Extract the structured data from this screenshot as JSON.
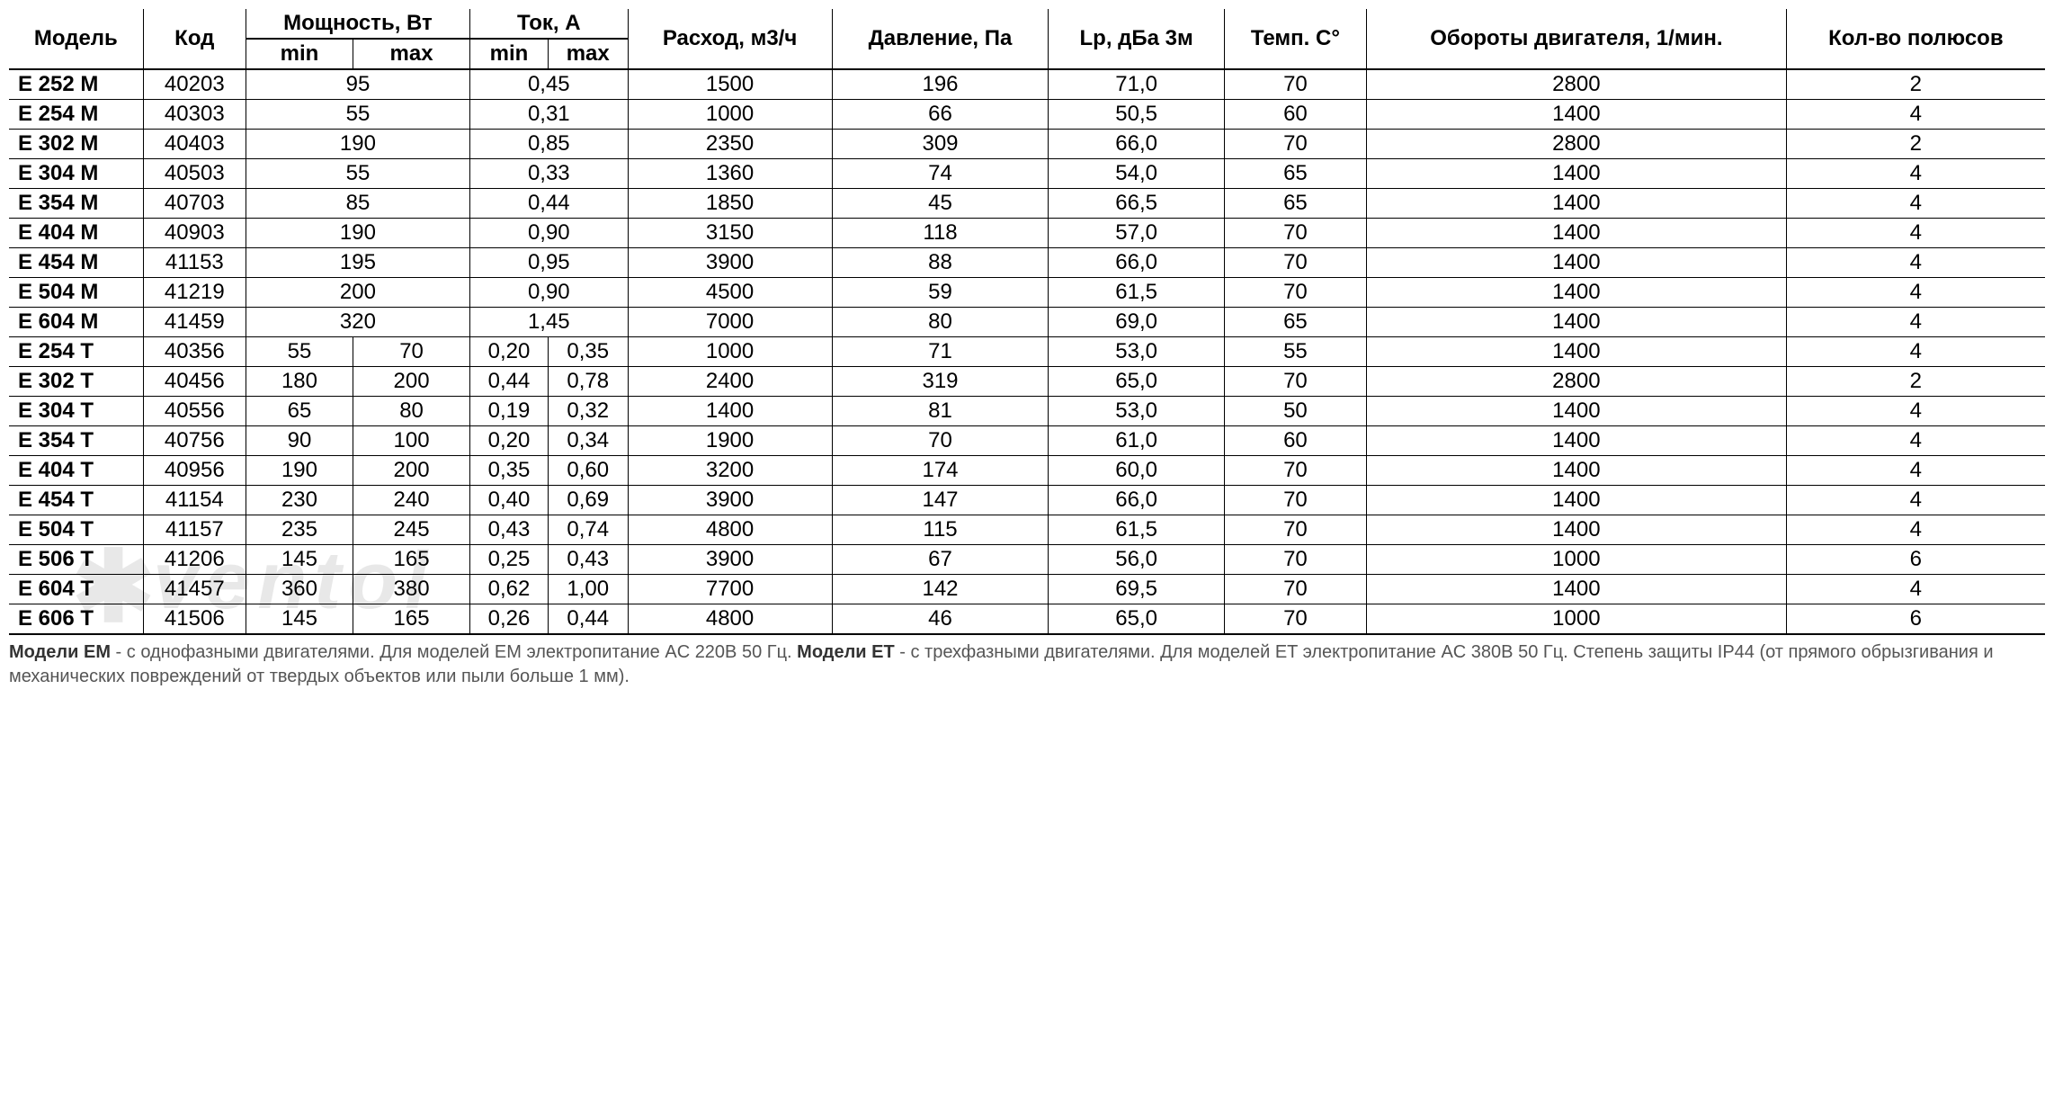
{
  "table": {
    "text_color": "#000000",
    "header_color": "#000000",
    "border_color": "#000000",
    "background_color": "#ffffff",
    "font_size_pt": 18,
    "headers": {
      "model": "Модель",
      "code": "Код",
      "power": "Мощность, Вт",
      "power_min": "min",
      "power_max": "max",
      "current": "Ток, А",
      "current_min": "min",
      "current_max": "max",
      "flow": "Расход, м3/ч",
      "pressure": "Давление, Па",
      "lp": "Lp, дБа 3м",
      "temp": "Темп. C°",
      "rpm": "Обороты двигателя, 1/мин.",
      "poles": "Кол-во полюсов"
    },
    "column_widths_pct": [
      8,
      7,
      6,
      6,
      6,
      6,
      9,
      9,
      8,
      8,
      10,
      9
    ],
    "rows": [
      {
        "model": "E 252 M",
        "code": "40203",
        "p_min": "95",
        "p_max": "",
        "c_min": "0,45",
        "c_max": "",
        "flow": "1500",
        "press": "196",
        "lp": "71,0",
        "temp": "70",
        "rpm": "2800",
        "poles": "2",
        "merged": true
      },
      {
        "model": "E 254 M",
        "code": "40303",
        "p_min": "55",
        "p_max": "",
        "c_min": "0,31",
        "c_max": "",
        "flow": "1000",
        "press": "66",
        "lp": "50,5",
        "temp": "60",
        "rpm": "1400",
        "poles": "4",
        "merged": true
      },
      {
        "model": "E 302 M",
        "code": "40403",
        "p_min": "190",
        "p_max": "",
        "c_min": "0,85",
        "c_max": "",
        "flow": "2350",
        "press": "309",
        "lp": "66,0",
        "temp": "70",
        "rpm": "2800",
        "poles": "2",
        "merged": true
      },
      {
        "model": "E 304 M",
        "code": "40503",
        "p_min": "55",
        "p_max": "",
        "c_min": "0,33",
        "c_max": "",
        "flow": "1360",
        "press": "74",
        "lp": "54,0",
        "temp": "65",
        "rpm": "1400",
        "poles": "4",
        "merged": true
      },
      {
        "model": "E 354 M",
        "code": "40703",
        "p_min": "85",
        "p_max": "",
        "c_min": "0,44",
        "c_max": "",
        "flow": "1850",
        "press": "45",
        "lp": "66,5",
        "temp": "65",
        "rpm": "1400",
        "poles": "4",
        "merged": true
      },
      {
        "model": "E 404 M",
        "code": "40903",
        "p_min": "190",
        "p_max": "",
        "c_min": "0,90",
        "c_max": "",
        "flow": "3150",
        "press": "118",
        "lp": "57,0",
        "temp": "70",
        "rpm": "1400",
        "poles": "4",
        "merged": true
      },
      {
        "model": "E 454 M",
        "code": "41153",
        "p_min": "195",
        "p_max": "",
        "c_min": "0,95",
        "c_max": "",
        "flow": "3900",
        "press": "88",
        "lp": "66,0",
        "temp": "70",
        "rpm": "1400",
        "poles": "4",
        "merged": true
      },
      {
        "model": "E 504 M",
        "code": "41219",
        "p_min": "200",
        "p_max": "",
        "c_min": "0,90",
        "c_max": "",
        "flow": "4500",
        "press": "59",
        "lp": "61,5",
        "temp": "70",
        "rpm": "1400",
        "poles": "4",
        "merged": true
      },
      {
        "model": "E 604 M",
        "code": "41459",
        "p_min": "320",
        "p_max": "",
        "c_min": "1,45",
        "c_max": "",
        "flow": "7000",
        "press": "80",
        "lp": "69,0",
        "temp": "65",
        "rpm": "1400",
        "poles": "4",
        "merged": true
      },
      {
        "model": "E 254 T",
        "code": "40356",
        "p_min": "55",
        "p_max": "70",
        "c_min": "0,20",
        "c_max": "0,35",
        "flow": "1000",
        "press": "71",
        "lp": "53,0",
        "temp": "55",
        "rpm": "1400",
        "poles": "4",
        "merged": false
      },
      {
        "model": "E 302 T",
        "code": "40456",
        "p_min": "180",
        "p_max": "200",
        "c_min": "0,44",
        "c_max": "0,78",
        "flow": "2400",
        "press": "319",
        "lp": "65,0",
        "temp": "70",
        "rpm": "2800",
        "poles": "2",
        "merged": false
      },
      {
        "model": "E 304 T",
        "code": "40556",
        "p_min": "65",
        "p_max": "80",
        "c_min": "0,19",
        "c_max": "0,32",
        "flow": "1400",
        "press": "81",
        "lp": "53,0",
        "temp": "50",
        "rpm": "1400",
        "poles": "4",
        "merged": false
      },
      {
        "model": "E 354 T",
        "code": "40756",
        "p_min": "90",
        "p_max": "100",
        "c_min": "0,20",
        "c_max": "0,34",
        "flow": "1900",
        "press": "70",
        "lp": "61,0",
        "temp": "60",
        "rpm": "1400",
        "poles": "4",
        "merged": false
      },
      {
        "model": "E 404 T",
        "code": "40956",
        "p_min": "190",
        "p_max": "200",
        "c_min": "0,35",
        "c_max": "0,60",
        "flow": "3200",
        "press": "174",
        "lp": "60,0",
        "temp": "70",
        "rpm": "1400",
        "poles": "4",
        "merged": false
      },
      {
        "model": "E 454 T",
        "code": "41154",
        "p_min": "230",
        "p_max": "240",
        "c_min": "0,40",
        "c_max": "0,69",
        "flow": "3900",
        "press": "147",
        "lp": "66,0",
        "temp": "70",
        "rpm": "1400",
        "poles": "4",
        "merged": false
      },
      {
        "model": "E 504 T",
        "code": "41157",
        "p_min": "235",
        "p_max": "245",
        "c_min": "0,43",
        "c_max": "0,74",
        "flow": "4800",
        "press": "115",
        "lp": "61,5",
        "temp": "70",
        "rpm": "1400",
        "poles": "4",
        "merged": false
      },
      {
        "model": "E 506 T",
        "code": "41206",
        "p_min": "145",
        "p_max": "165",
        "c_min": "0,25",
        "c_max": "0,43",
        "flow": "3900",
        "press": "67",
        "lp": "56,0",
        "temp": "70",
        "rpm": "1000",
        "poles": "6",
        "merged": false
      },
      {
        "model": "E 604 T",
        "code": "41457",
        "p_min": "360",
        "p_max": "380",
        "c_min": "0,62",
        "c_max": "1,00",
        "flow": "7700",
        "press": "142",
        "lp": "69,5",
        "temp": "70",
        "rpm": "1400",
        "poles": "4",
        "merged": false
      },
      {
        "model": "E 606 T",
        "code": "41506",
        "p_min": "145",
        "p_max": "165",
        "c_min": "0,26",
        "c_max": "0,44",
        "flow": "4800",
        "press": "46",
        "lp": "65,0",
        "temp": "70",
        "rpm": "1000",
        "poles": "6",
        "merged": false
      }
    ]
  },
  "footnote": {
    "em_label": "Модели EM",
    "em_text": " - с однофазными двигателями. Для моделей EM электропитание AC 220В 50 Гц. ",
    "et_label": "Модели ET",
    "et_text": " - с трехфазными двигателями. Для моделей ET электропитание AC 380В 50 Гц. Степень защиты IP44 (от прямого обрызгивания и механических повреждений от твердых объектов или пыли больше 1 мм).",
    "font_size_pt": 15,
    "text_color": "#555555"
  },
  "watermark": {
    "text": "ventol",
    "color": "#e8e8e8"
  }
}
